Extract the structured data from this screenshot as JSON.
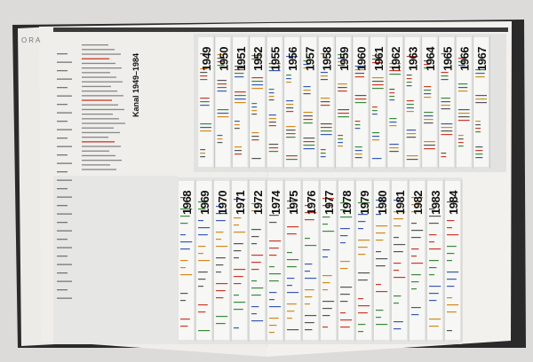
{
  "edge_page": {
    "text": "ORA"
  },
  "section_label": "Kanal 1949–1984",
  "top_row": {
    "years": [
      "1949",
      "1950",
      "1951",
      "1952",
      "1955",
      "1956",
      "1957",
      "1958",
      "1959",
      "1960",
      "1961",
      "1962",
      "1963",
      "1964",
      "1965",
      "1966",
      "1967"
    ]
  },
  "bottom_row": {
    "years": [
      "1968",
      "1969",
      "1970",
      "1971",
      "1972",
      "1974",
      "1975",
      "1976",
      "1977",
      "1978",
      "1979",
      "1980",
      "1981",
      "1982",
      "1983",
      "1984"
    ]
  }
}
